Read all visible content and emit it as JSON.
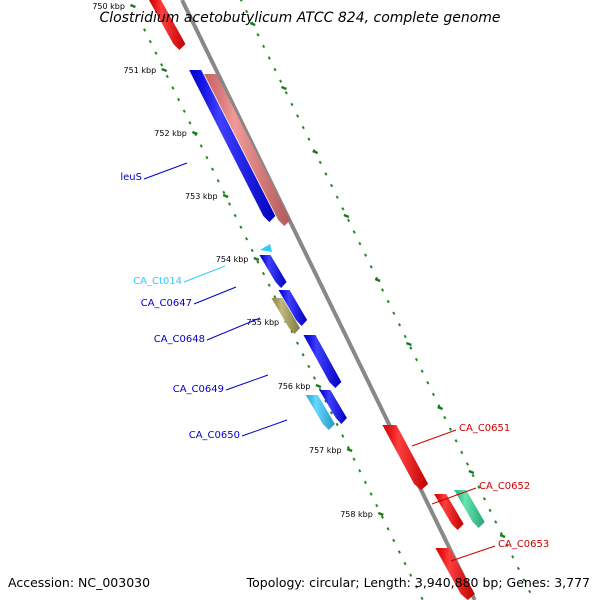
{
  "header": {
    "title": "Clostridium acetobutylicum ATCC 824, complete genome"
  },
  "footer": {
    "accession": "Accession: NC_003030",
    "summary": "Topology: circular; Length: 3,940,880 bp; Genes: 3,777"
  },
  "colors": {
    "forward_gene": "#0000ff",
    "reverse_gene": "#ff0000",
    "forward_label": "#0000cc",
    "reverse_label": "#cc0000",
    "ncRNA": "#33ccff",
    "tRNA": "#ee7777",
    "other_feature": "#aaa255",
    "green_feature": "#33dd99",
    "backbone": "#888888",
    "gc_skew_ticks": "#228822"
  },
  "ticks": [
    {
      "label": "750 kbp"
    },
    {
      "label": "751 kbp"
    },
    {
      "label": "752 kbp"
    },
    {
      "label": "753 kbp"
    },
    {
      "label": "754 kbp"
    },
    {
      "label": "755 kbp"
    },
    {
      "label": "756 kbp"
    },
    {
      "label": "757 kbp"
    },
    {
      "label": "758 kbp"
    }
  ],
  "labels": [
    {
      "text": "leuS",
      "color_key": "forward_label"
    },
    {
      "text": "CA_Ct014",
      "color_key": "ncRNA"
    },
    {
      "text": "CA_C0647",
      "color_key": "forward_label"
    },
    {
      "text": "CA_C0648",
      "color_key": "forward_label"
    },
    {
      "text": "CA_C0649",
      "color_key": "forward_label"
    },
    {
      "text": "CA_C0650",
      "color_key": "forward_label"
    },
    {
      "text": "CA_C0651",
      "color_key": "reverse_label"
    },
    {
      "text": "CA_C0652",
      "color_key": "reverse_label"
    },
    {
      "text": "CA_C0653",
      "color_key": "reverse_label"
    }
  ]
}
